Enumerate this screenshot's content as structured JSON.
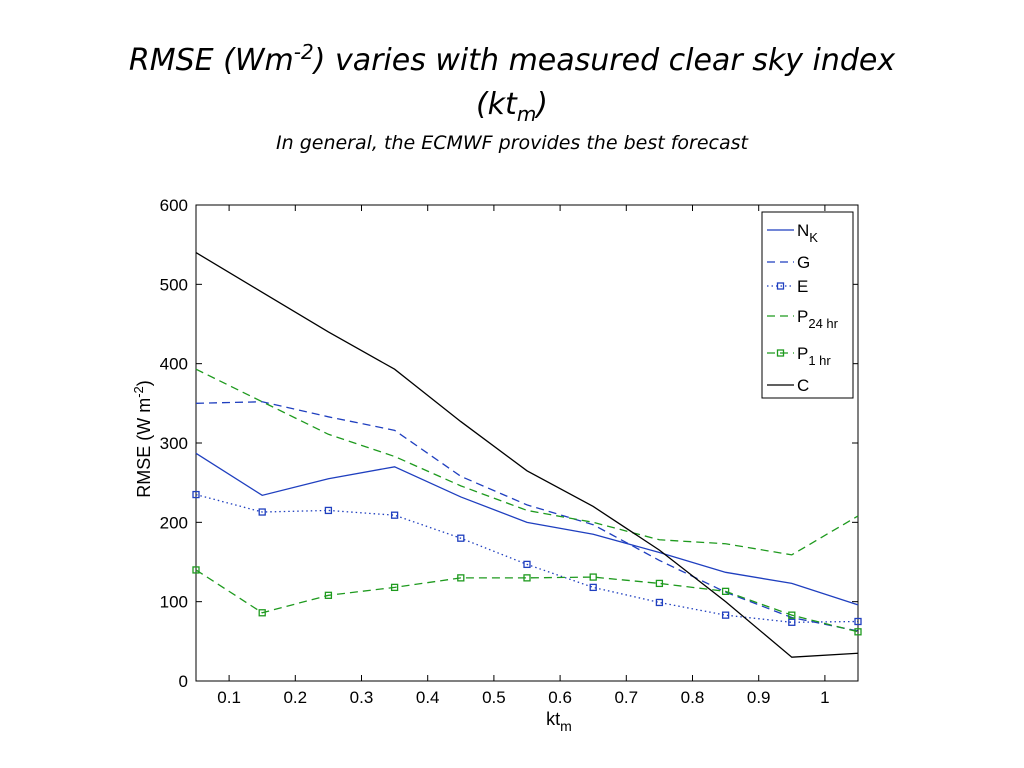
{
  "slide": {
    "title_main": "RMSE (Wm",
    "title_sup": "-2",
    "title_rest": ") varies with measured clear sky index",
    "title_line2_open": "(kt",
    "title_line2_sub": "m",
    "title_line2_close": ")",
    "subtitle": "In general, the ECMWF provides the best forecast"
  },
  "chart_data": {
    "type": "line",
    "xlabel": "kt",
    "xlabel_sub": "m",
    "ylabel": "RMSE (W m",
    "ylabel_sup": "-2",
    "ylabel_close": ")",
    "xlim": [
      0.05,
      1.05
    ],
    "ylim": [
      0,
      600
    ],
    "x_ticks": [
      "0.1",
      "0.2",
      "0.3",
      "0.4",
      "0.5",
      "0.6",
      "0.7",
      "0.8",
      "0.9",
      "1"
    ],
    "y_ticks": [
      "0",
      "100",
      "200",
      "300",
      "400",
      "500",
      "600"
    ],
    "legend_position": "top-right",
    "grid": false,
    "x": [
      0.05,
      0.15,
      0.25,
      0.35,
      0.45,
      0.55,
      0.65,
      0.75,
      0.85,
      0.95,
      1.05
    ],
    "series": [
      {
        "name": "N",
        "name_sub": "K",
        "color": "#1f3fbf",
        "dash": "solid",
        "marker": "none",
        "values": [
          287,
          234,
          255,
          270,
          232,
          200,
          185,
          162,
          137,
          123,
          96
        ]
      },
      {
        "name": "G",
        "name_sub": "",
        "color": "#1f3fbf",
        "dash": "dashed",
        "marker": "none",
        "values": [
          350,
          352,
          333,
          316,
          258,
          222,
          197,
          152,
          112,
          80,
          63
        ]
      },
      {
        "name": "E",
        "name_sub": "",
        "color": "#1f3fbf",
        "dash": "dotted",
        "marker": "square",
        "values": [
          235,
          213,
          215,
          209,
          180,
          147,
          118,
          99,
          83,
          74,
          75
        ]
      },
      {
        "name": "P",
        "name_sub": "24 hr",
        "color": "#1e9a1e",
        "dash": "dashed",
        "marker": "none",
        "values": [
          393,
          352,
          311,
          283,
          246,
          215,
          200,
          178,
          173,
          159,
          208
        ]
      },
      {
        "name": "P",
        "name_sub": "1 hr",
        "color": "#1e9a1e",
        "dash": "dashed",
        "marker": "square",
        "values": [
          140,
          86,
          108,
          118,
          130,
          130,
          131,
          123,
          113,
          83,
          62
        ]
      },
      {
        "name": "C",
        "name_sub": "",
        "color": "#000000",
        "dash": "solid",
        "marker": "none",
        "values": [
          540,
          490,
          440,
          393,
          327,
          265,
          220,
          165,
          100,
          30,
          35
        ]
      }
    ]
  }
}
